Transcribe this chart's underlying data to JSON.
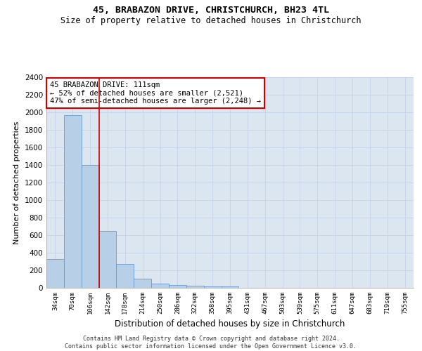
{
  "title1": "45, BRABAZON DRIVE, CHRISTCHURCH, BH23 4TL",
  "title2": "Size of property relative to detached houses in Christchurch",
  "xlabel": "Distribution of detached houses by size in Christchurch",
  "ylabel": "Number of detached properties",
  "bar_categories": [
    "34sqm",
    "70sqm",
    "106sqm",
    "142sqm",
    "178sqm",
    "214sqm",
    "250sqm",
    "286sqm",
    "322sqm",
    "358sqm",
    "395sqm",
    "431sqm",
    "467sqm",
    "503sqm",
    "539sqm",
    "575sqm",
    "611sqm",
    "647sqm",
    "683sqm",
    "719sqm",
    "755sqm"
  ],
  "bar_values": [
    325,
    1970,
    1400,
    650,
    275,
    105,
    45,
    35,
    25,
    18,
    18,
    0,
    0,
    0,
    0,
    0,
    0,
    0,
    0,
    0,
    0
  ],
  "bar_color": "#b8cfe8",
  "bar_edgecolor": "#6699cc",
  "vline_color": "#cc0000",
  "vline_pos": 2.5,
  "annotation_text": "45 BRABAZON DRIVE: 111sqm\n← 52% of detached houses are smaller (2,521)\n47% of semi-detached houses are larger (2,248) →",
  "annotation_box_facecolor": "#ffffff",
  "annotation_box_edgecolor": "#cc0000",
  "ylim": [
    0,
    2400
  ],
  "yticks": [
    0,
    200,
    400,
    600,
    800,
    1000,
    1200,
    1400,
    1600,
    1800,
    2000,
    2200,
    2400
  ],
  "grid_color": "#c8d4e8",
  "background_color": "#dce6f0",
  "footer1": "Contains HM Land Registry data © Crown copyright and database right 2024.",
  "footer2": "Contains public sector information licensed under the Open Government Licence v3.0."
}
